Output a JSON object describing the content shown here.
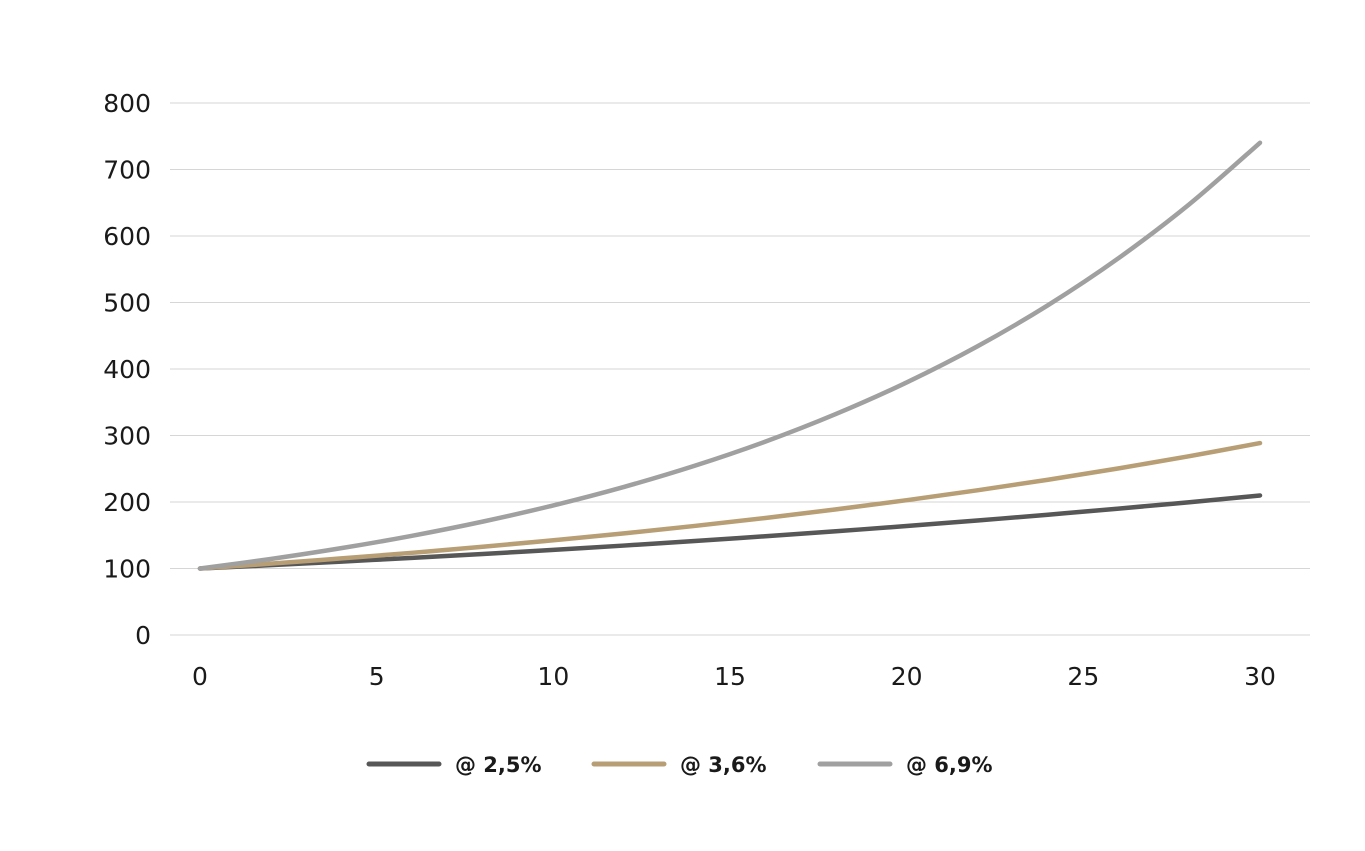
{
  "chart_data": {
    "type": "line",
    "title": "",
    "xlabel": "",
    "ylabel": "",
    "xlim": [
      0,
      30
    ],
    "ylim": [
      0,
      800
    ],
    "x_ticks": [
      0,
      5,
      10,
      15,
      20,
      25,
      30
    ],
    "y_ticks": [
      0,
      100,
      200,
      300,
      400,
      500,
      600,
      700,
      800
    ],
    "grid": "horizontal",
    "legend_position": "bottom-center",
    "x": [
      0,
      2,
      4,
      6,
      8,
      10,
      12,
      14,
      16,
      18,
      20,
      22,
      24,
      26,
      28,
      30
    ],
    "series": [
      {
        "name": "@ 2,5%",
        "color": "#575757",
        "values": [
          100,
          105,
          110.4,
          116,
          121.8,
          128,
          134.5,
          141.3,
          148.5,
          156,
          163.9,
          172.2,
          180.9,
          190.1,
          199.7,
          209.8
        ]
      },
      {
        "name": "@ 3,6%",
        "color": "#b89e74",
        "values": [
          100,
          107.3,
          115.2,
          123.6,
          132.7,
          142.4,
          152.8,
          164,
          176,
          188.9,
          202.7,
          217.6,
          233.5,
          250.6,
          268.9,
          288.6
        ]
      },
      {
        "name": "@ 6,9%",
        "color": "#a0a0a0",
        "values": [
          100,
          114.3,
          130.6,
          149.2,
          170.5,
          194.9,
          222.7,
          254.5,
          290.8,
          332.4,
          379.8,
          434,
          496,
          566.8,
          647.7,
          740.2
        ]
      }
    ]
  }
}
